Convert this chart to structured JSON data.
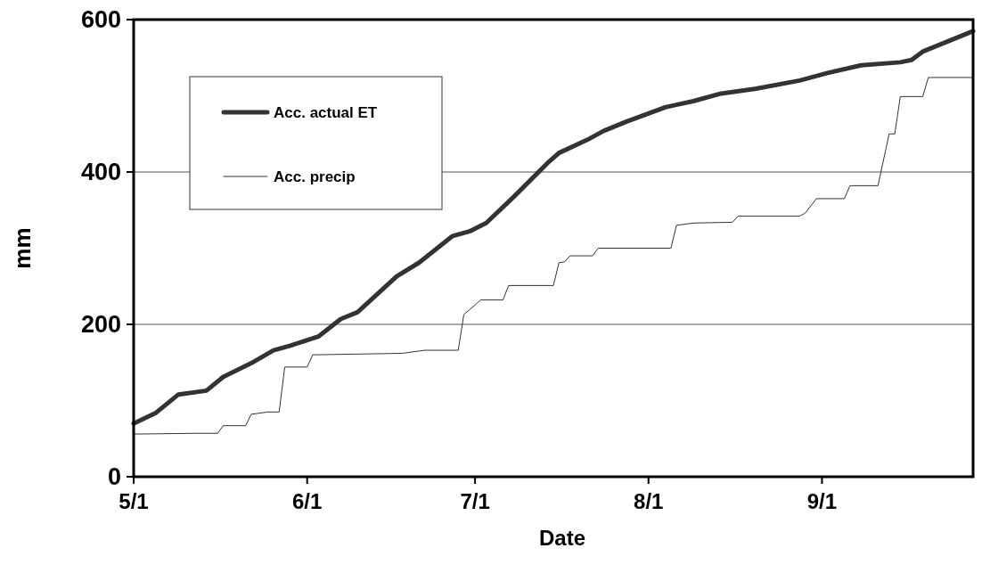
{
  "chart_data": {
    "type": "line",
    "xlabel": "Date",
    "ylabel": "mm",
    "xlim": [
      "--05-01",
      "--09-28"
    ],
    "xticks": [
      {
        "value": "--05-01",
        "label": "5/1"
      },
      {
        "value": "--06-01",
        "label": "6/1"
      },
      {
        "value": "--07-01",
        "label": "7/1"
      },
      {
        "value": "--08-01",
        "label": "8/1"
      },
      {
        "value": "--09-01",
        "label": "9/1"
      }
    ],
    "ylim": [
      0,
      600
    ],
    "yticks": [
      0,
      200,
      400,
      600
    ],
    "grid": "y",
    "legend": "top left",
    "marker": "none",
    "line_style": "solid",
    "series": [
      {
        "name": "Acc. actual ET",
        "color": "#333333",
        "x": [
          "--05-01",
          "--05-05",
          "--05-09",
          "--05-14",
          "--05-17",
          "--05-22",
          "--05-26",
          "--05-29",
          "--06-03",
          "--06-07",
          "--06-10",
          "--06-17",
          "--06-21",
          "--06-27",
          "--06-30",
          "--07-03",
          "--07-08",
          "--07-14",
          "--07-16",
          "--07-21",
          "--07-24",
          "--07-28",
          "--08-04",
          "--08-09",
          "--08-14",
          "--08-20",
          "--08-28",
          "--09-02",
          "--09-08",
          "--09-15",
          "--09-17",
          "--09-19",
          "--09-24",
          "--09-28"
        ],
        "values": [
          70,
          84,
          108,
          113,
          131,
          149,
          166,
          172,
          184,
          207,
          216,
          263,
          281,
          316,
          322,
          333,
          368,
          412,
          425,
          442,
          454,
          466,
          485,
          493,
          503,
          509,
          520,
          530,
          540,
          544,
          547,
          558,
          573,
          585
        ]
      },
      {
        "name": "Acc. precip",
        "color": "#333333",
        "x": [
          "--05-01",
          "--05-12",
          "--05-16",
          "--05-17",
          "--05-21",
          "--05-22",
          "--05-25",
          "--05-27",
          "--05-28",
          "--06-01",
          "--06-02",
          "--06-18",
          "--06-22",
          "--06-28",
          "--06-29",
          "--06-30",
          "--07-02",
          "--07-06",
          "--07-07",
          "--07-15",
          "--07-16",
          "--07-17",
          "--07-18",
          "--07-22",
          "--07-23",
          "--08-05",
          "--08-06",
          "--08-09",
          "--08-16",
          "--08-17",
          "--08-28",
          "--08-29",
          "--08-31",
          "--09-05",
          "--09-06",
          "--09-11",
          "--09-13",
          "--09-14",
          "--09-15",
          "--09-19",
          "--09-20",
          "--09-28"
        ],
        "values": [
          56,
          57,
          57,
          67,
          67,
          82,
          85,
          85,
          144,
          144,
          160,
          162,
          166,
          166,
          213,
          219,
          232,
          232,
          251,
          251,
          281,
          282,
          290,
          290,
          300,
          300,
          330,
          333,
          334,
          342,
          342,
          346,
          365,
          365,
          382,
          382,
          450,
          450,
          499,
          499,
          524,
          524
        ]
      }
    ]
  }
}
